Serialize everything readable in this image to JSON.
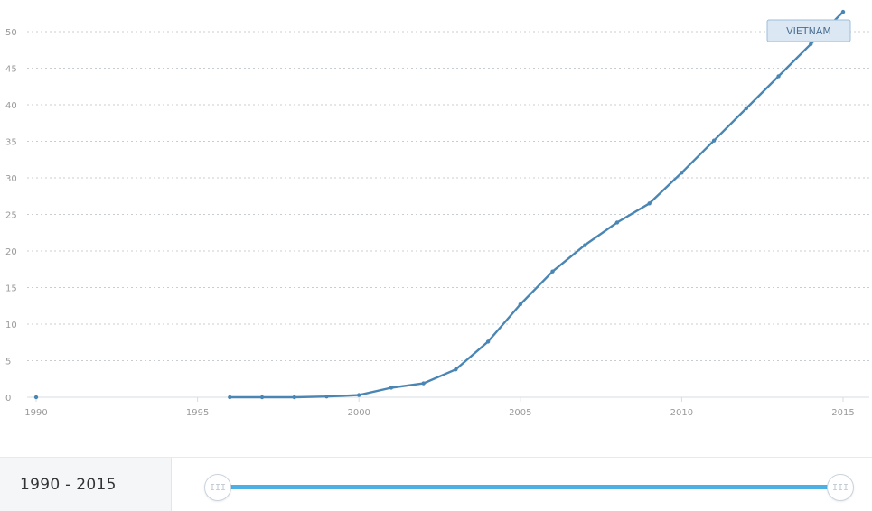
{
  "chart_data": {
    "type": "line",
    "x_ticks": [
      "1990",
      "1995",
      "2000",
      "2005",
      "2010",
      "2015"
    ],
    "y_ticks": [
      "0",
      "5",
      "10",
      "15",
      "20",
      "25",
      "30",
      "35",
      "40",
      "45",
      "50"
    ],
    "xlim": [
      1990,
      2015
    ],
    "ylim": [
      0,
      50
    ],
    "grid": true,
    "series": [
      {
        "name": "VIETNAM",
        "color": "#4a86b4",
        "points": [
          {
            "x": 1990,
            "y": 0
          },
          {
            "x": 1996,
            "y": 0
          },
          {
            "x": 1997,
            "y": 0
          },
          {
            "x": 1998,
            "y": 0
          },
          {
            "x": 1999,
            "y": 0.1
          },
          {
            "x": 2000,
            "y": 0.3
          },
          {
            "x": 2001,
            "y": 1.3
          },
          {
            "x": 2002,
            "y": 1.9
          },
          {
            "x": 2003,
            "y": 3.8
          },
          {
            "x": 2004,
            "y": 7.6
          },
          {
            "x": 2005,
            "y": 12.7
          },
          {
            "x": 2006,
            "y": 17.2
          },
          {
            "x": 2007,
            "y": 20.8
          },
          {
            "x": 2008,
            "y": 23.9
          },
          {
            "x": 2009,
            "y": 26.5
          },
          {
            "x": 2010,
            "y": 30.7
          },
          {
            "x": 2011,
            "y": 35.1
          },
          {
            "x": 2012,
            "y": 39.5
          },
          {
            "x": 2013,
            "y": 43.9
          },
          {
            "x": 2014,
            "y": 48.3
          },
          {
            "x": 2015,
            "y": 52.7
          }
        ]
      }
    ]
  },
  "range_selector": {
    "label": "1990 - 2015",
    "start_year": 1990,
    "end_year": 2015,
    "handle_glyph": "III",
    "track_color": "#4db0e4"
  }
}
